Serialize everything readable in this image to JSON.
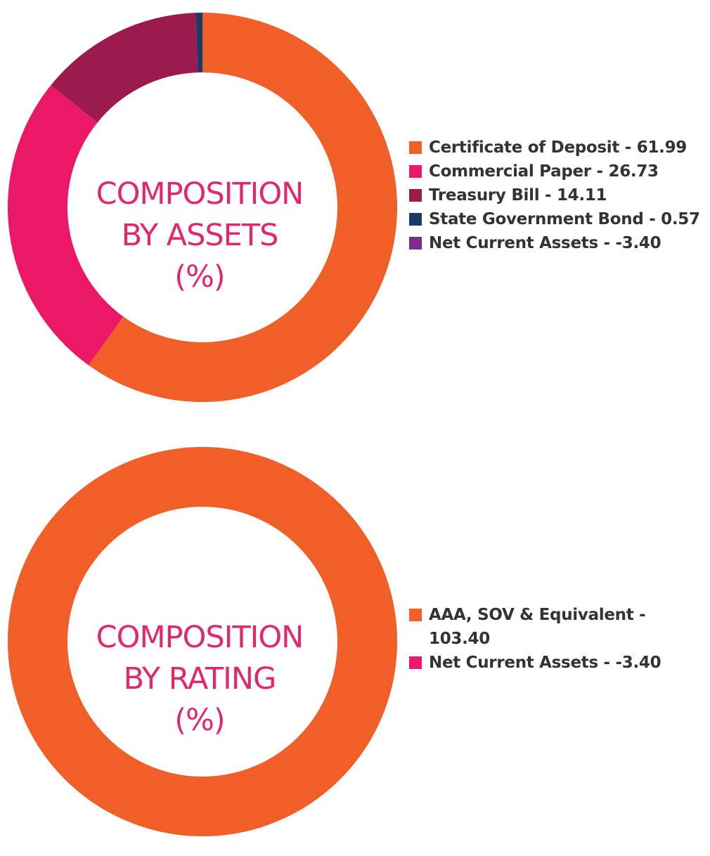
{
  "chart_data": [
    {
      "type": "pie",
      "title": "COMPOSITION BY ASSETS (%)",
      "title_lines": [
        "COMPOSITION",
        "BY ASSETS",
        "(%)"
      ],
      "donut": true,
      "slices": [
        {
          "label": "Certificate of Deposit",
          "value": 61.99,
          "color": "#f05f28",
          "legend": "Certificate of Deposit - 61.99"
        },
        {
          "label": "Commercial Paper",
          "value": 26.73,
          "color": "#eb1868",
          "legend": "Commercial Paper - 26.73"
        },
        {
          "label": "Treasury Bill",
          "value": 14.11,
          "color": "#9b1b4f",
          "legend": "Treasury Bill - 14.11"
        },
        {
          "label": "State Government Bond",
          "value": 0.57,
          "color": "#1b3a66",
          "legend": "State Government Bond - 0.57"
        },
        {
          "label": "Net Current Assets",
          "value": -3.4,
          "color": "#7a2e8e",
          "legend": "Net Current Assets - -3.40"
        }
      ],
      "legend_position": "right"
    },
    {
      "type": "pie",
      "title": "COMPOSITION BY RATING (%)",
      "title_lines": [
        "COMPOSITION",
        "BY RATING",
        "(%)"
      ],
      "donut": true,
      "slices": [
        {
          "label": "AAA, SOV & Equivalent",
          "value": 103.4,
          "color": "#f05f28",
          "legend": "AAA, SOV & Equivalent - 103.40"
        },
        {
          "label": "Net Current Assets",
          "value": -3.4,
          "color": "#eb1868",
          "legend": "Net Current Assets - -3.40"
        }
      ],
      "legend_position": "right"
    }
  ]
}
